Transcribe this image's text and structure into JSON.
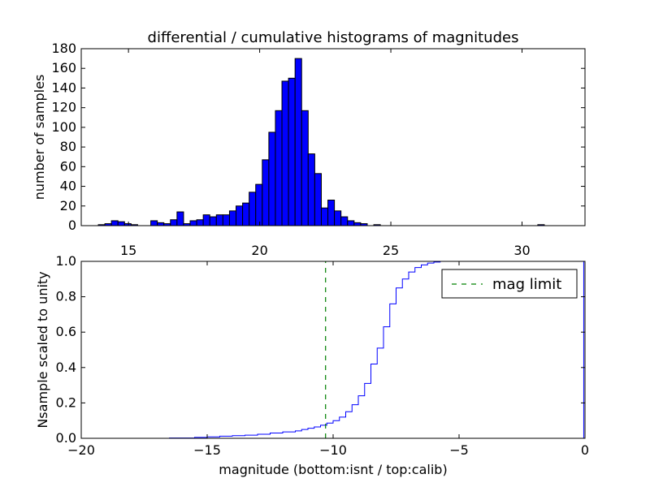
{
  "figure_title": "differential / cumulative histograms of magnitudes",
  "colors": {
    "bar_fill": "#0000ff",
    "bar_edge": "#000000",
    "cdf_line": "#0000ff",
    "limit_line": "#008000"
  },
  "chart_data": [
    {
      "type": "bar",
      "title": "differential / cumulative histograms of magnitudes",
      "xlabel": "",
      "ylabel": "number of samples",
      "x_axis_position": "top",
      "xlim": [
        13.2,
        32.4
      ],
      "ylim": [
        0,
        180
      ],
      "xticks": [
        15,
        20,
        25,
        30
      ],
      "yticks": [
        0,
        20,
        40,
        60,
        80,
        100,
        120,
        140,
        160,
        180
      ],
      "grid": false,
      "bin_start": 13.6,
      "bin_width": 0.25,
      "values": [
        0,
        1,
        2,
        5,
        4,
        2,
        1,
        0,
        0,
        5,
        3,
        2,
        6,
        14,
        2,
        5,
        6,
        11,
        9,
        11,
        11,
        15,
        20,
        23,
        34,
        42,
        67,
        95,
        117,
        147,
        150,
        170,
        117,
        73,
        53,
        18,
        26,
        15,
        9,
        5,
        3,
        2,
        0,
        1,
        0,
        0,
        0,
        0,
        0,
        0,
        0,
        0,
        0,
        0,
        0,
        0,
        0,
        0,
        0,
        0,
        0,
        0,
        0,
        0,
        0,
        0,
        0,
        0,
        1,
        0,
        0,
        0,
        0,
        0,
        0,
        0
      ]
    },
    {
      "type": "line",
      "title": "",
      "xlabel": "magnitude (bottom:isnt / top:calib)",
      "ylabel": "Nsample scaled to unity",
      "xlim": [
        -20,
        0
      ],
      "ylim": [
        0,
        1.0
      ],
      "xticks": [
        -20,
        -15,
        -10,
        -5,
        0
      ],
      "yticks": [
        0.0,
        0.2,
        0.4,
        0.6,
        0.8,
        1.0
      ],
      "grid": false,
      "legend_position": "top-right",
      "series": [
        {
          "name": "",
          "drawstyle": "steps",
          "x": [
            -20,
            -16.5,
            -15.5,
            -15.0,
            -14.5,
            -14.0,
            -13.5,
            -13.0,
            -12.5,
            -12.0,
            -11.5,
            -11.25,
            -11.0,
            -10.75,
            -10.5,
            -10.25,
            -10.0,
            -9.75,
            -9.5,
            -9.25,
            -9.0,
            -8.75,
            -8.5,
            -8.25,
            -8.0,
            -7.75,
            -7.5,
            -7.25,
            -7.0,
            -6.75,
            -6.5,
            -6.25,
            -6.0,
            -5.75,
            -0.05,
            -0.05
          ],
          "y": [
            0.0,
            0.002,
            0.005,
            0.008,
            0.012,
            0.015,
            0.018,
            0.023,
            0.03,
            0.036,
            0.042,
            0.05,
            0.057,
            0.064,
            0.074,
            0.086,
            0.1,
            0.12,
            0.15,
            0.19,
            0.24,
            0.31,
            0.42,
            0.51,
            0.63,
            0.76,
            0.85,
            0.9,
            0.94,
            0.965,
            0.98,
            0.99,
            0.996,
            1.0,
            1.0,
            0.0
          ]
        },
        {
          "name": "mag limit",
          "style": "dashed",
          "x": [
            -10.3,
            -10.3
          ],
          "y": [
            0,
            1.0
          ]
        }
      ]
    }
  ]
}
